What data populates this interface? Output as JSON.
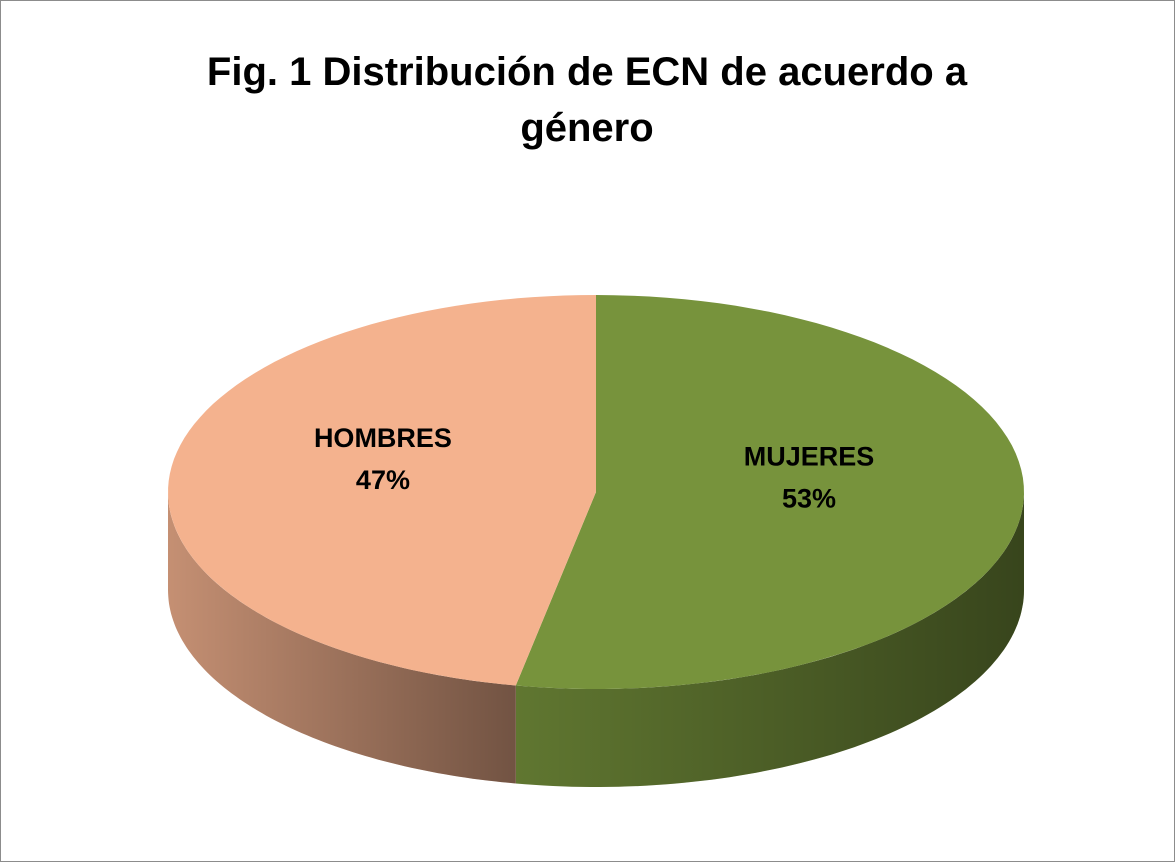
{
  "chart_data": {
    "type": "pie",
    "title": "Fig. 1 Distribución de ECN de acuerdo a género",
    "categories": [
      "MUJERES",
      "HOMBRES"
    ],
    "values": [
      53,
      47
    ],
    "value_labels": [
      "53%",
      "47%"
    ],
    "colors": [
      "#77933c",
      "#f4b28e"
    ]
  }
}
